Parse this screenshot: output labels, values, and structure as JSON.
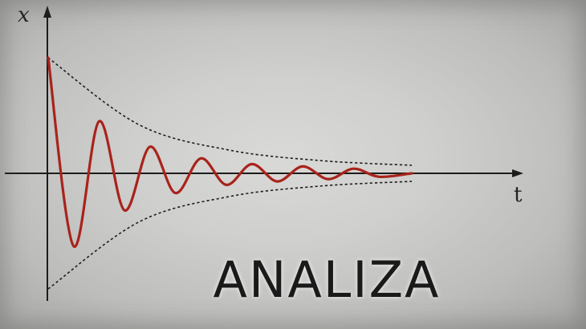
{
  "chart_data": {
    "type": "line",
    "title": "",
    "xlabel": "t",
    "ylabel": "x",
    "ylim": [
      -1.0,
      1.0
    ],
    "series": [
      {
        "role": "oscillation",
        "x": [
          0,
          0.07,
          0.14,
          0.21,
          0.28,
          0.35,
          0.42,
          0.49,
          0.56,
          0.63,
          0.7,
          0.77,
          0.84,
          0.91,
          1.0
        ],
        "y": [
          1.0,
          -0.63,
          0.45,
          -0.32,
          0.23,
          -0.17,
          0.13,
          -0.1,
          0.08,
          -0.07,
          0.06,
          -0.05,
          0.04,
          -0.03,
          0.0
        ]
      },
      {
        "role": "upper-envelope",
        "x": [
          0,
          0.25,
          0.5,
          0.75,
          1.0
        ],
        "y": [
          1.0,
          0.42,
          0.2,
          0.11,
          0.07
        ]
      },
      {
        "role": "lower-envelope",
        "x": [
          0,
          0.25,
          0.5,
          0.75,
          1.0
        ],
        "y": [
          -1.0,
          -0.42,
          -0.2,
          -0.11,
          -0.07
        ]
      }
    ],
    "colors": {
      "oscillation": "#a8231b",
      "envelope": "#1e1e1e",
      "axes": "#1c1c1c"
    },
    "grid": false,
    "legend": "none"
  },
  "brand_text": "ANALIZA"
}
